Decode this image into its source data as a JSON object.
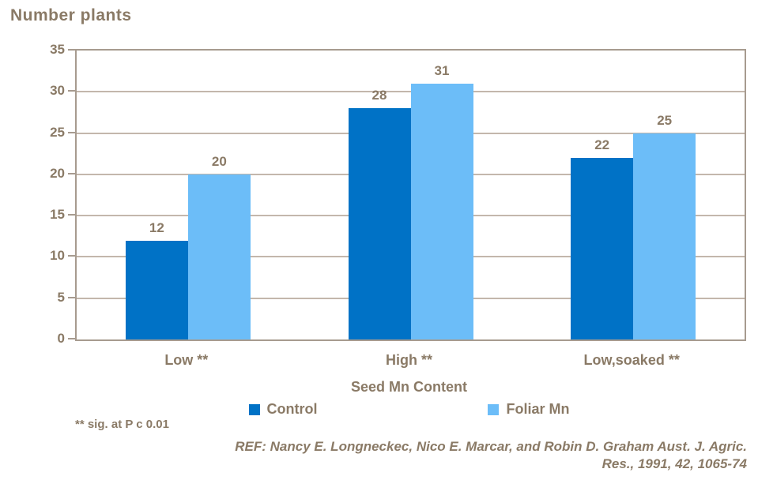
{
  "chart_data": {
    "type": "bar",
    "title": "Number plants",
    "categories": [
      "Low **",
      "High **",
      "Low,soaked **"
    ],
    "series": [
      {
        "name": "Control",
        "color": "#0072c6",
        "values": [
          12,
          28,
          22
        ]
      },
      {
        "name": "Foliar Mn",
        "color": "#6cbdf8",
        "values": [
          20,
          31,
          25
        ]
      }
    ],
    "xlabel": "Seed Mn Content",
    "ylabel": "Number plants",
    "ylim": [
      0,
      35
    ],
    "ytick_step": 5,
    "grid": true,
    "legend_position": "bottom",
    "data_labels_shown": true
  },
  "footnote": "** sig. at P c 0.01",
  "reference": {
    "line1": "REF: Nancy E. Longneckec, Nico E. Marcar, and Robin D. Graham Aust. J. Agric.",
    "line2": "Res., 1991, 42, 1065-74"
  },
  "colors": {
    "text": "#8a7a66",
    "axis": "#a79b8f",
    "gridline": "#c3b7ac",
    "background": "#ffffff"
  }
}
